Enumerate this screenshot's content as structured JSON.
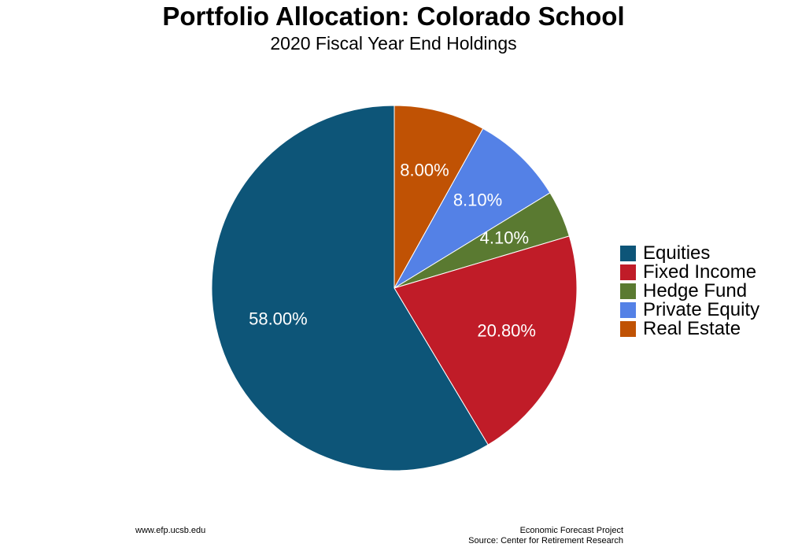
{
  "chart_data": {
    "type": "pie",
    "title": "Portfolio Allocation: Colorado School",
    "subtitle": "2020 Fiscal Year End Holdings",
    "slices": [
      {
        "name": "Equities",
        "value": 58.0,
        "label": "58.00%",
        "color": "#0d5578"
      },
      {
        "name": "Fixed Income",
        "value": 20.8,
        "label": "20.80%",
        "color": "#c01c28"
      },
      {
        "name": "Hedge Fund",
        "value": 4.1,
        "label": "4.10%",
        "color": "#5a7a31"
      },
      {
        "name": "Private Equity",
        "value": 8.1,
        "label": "8.10%",
        "color": "#5481e6"
      },
      {
        "name": "Real Estate",
        "value": 8.0,
        "label": "8.00%",
        "color": "#c05204"
      }
    ],
    "slice_order_clockwise_from_top": [
      "Real Estate",
      "Private Equity",
      "Hedge Fund",
      "Fixed Income",
      "Equities"
    ],
    "legend_position": "right"
  },
  "footer": {
    "left": "www.efp.ucsb.edu",
    "right_line1": "Economic Forecast Project",
    "right_line2": "Source: Center for Retirement Research"
  }
}
